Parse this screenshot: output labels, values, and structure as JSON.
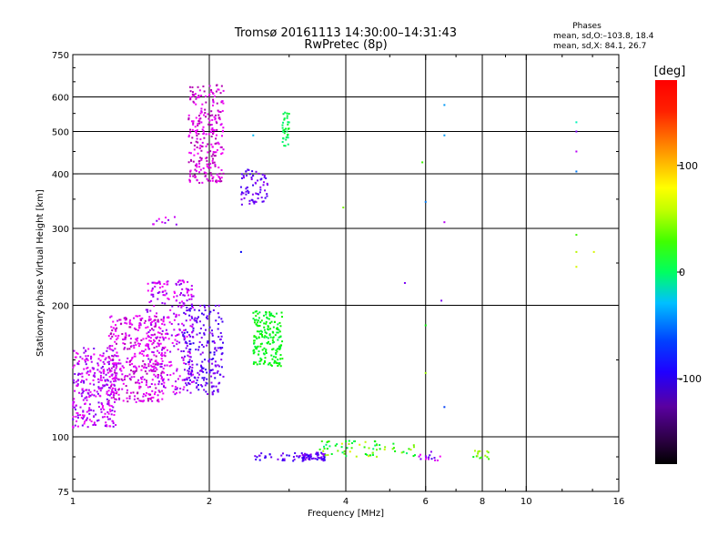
{
  "chart_data": {
    "type": "scatter",
    "title": "Tromsø 20161113 14:30:00–14:31:43",
    "subtitle": "RwPretec (8p)",
    "xlabel": "Frequency [MHz]",
    "ylabel": "Stationary phase Virtual Height [km]",
    "x_scale": "log",
    "y_scale": "log",
    "xlim": [
      1,
      16
    ],
    "ylim": [
      75,
      750
    ],
    "x_ticks": [
      1,
      2,
      4,
      6,
      8,
      10,
      16
    ],
    "y_ticks": [
      75,
      100,
      200,
      300,
      400,
      500,
      600,
      750
    ],
    "x_gridlines": [
      2,
      4,
      6,
      8,
      10
    ],
    "y_gridlines": [
      100,
      200,
      300,
      400,
      500,
      600
    ],
    "stats": {
      "title": "Phases",
      "line1": "mean, sd,O:–103.8, 18.4",
      "line2": "mean, sd,X:  84.1, 26.7"
    },
    "colorbar": {
      "label": "[deg]",
      "range": [
        -180,
        180
      ],
      "ticks": [
        100,
        0,
        -100
      ]
    },
    "clusters": [
      {
        "f": [
          1.0,
          1.25
        ],
        "h": [
          105,
          160
        ],
        "n": 300,
        "phase": [
          -150,
          -95
        ]
      },
      {
        "f": [
          1.2,
          1.6
        ],
        "h": [
          120,
          190
        ],
        "n": 400,
        "phase": [
          -160,
          -120
        ]
      },
      {
        "f": [
          1.45,
          1.85
        ],
        "h": [
          125,
          230
        ],
        "n": 250,
        "phase": [
          -150,
          -100
        ]
      },
      {
        "f": [
          1.75,
          2.15
        ],
        "h": [
          125,
          200
        ],
        "n": 220,
        "phase": [
          -110,
          -75
        ]
      },
      {
        "f": [
          1.8,
          2.15
        ],
        "h": [
          380,
          640
        ],
        "n": 260,
        "phase": [
          -165,
          -130
        ]
      },
      {
        "f": [
          2.35,
          2.7
        ],
        "h": [
          340,
          410
        ],
        "n": 70,
        "phase": [
          -110,
          -75
        ]
      },
      {
        "f": [
          2.5,
          2.9
        ],
        "h": [
          145,
          195
        ],
        "n": 180,
        "phase": [
          75,
          110
        ]
      },
      {
        "f": [
          2.9,
          3.0
        ],
        "h": [
          460,
          560
        ],
        "n": 35,
        "phase": [
          60,
          95
        ]
      },
      {
        "f": [
          1.5,
          1.7
        ],
        "h": [
          300,
          320
        ],
        "n": 10,
        "phase": [
          -140,
          -100
        ]
      },
      {
        "f": [
          2.5,
          3.2
        ],
        "h": [
          88,
          92
        ],
        "n": 30,
        "phase": [
          -110,
          -70
        ]
      },
      {
        "f": [
          3.2,
          3.6
        ],
        "h": [
          88,
          92
        ],
        "n": 60,
        "phase": [
          -110,
          -70
        ]
      },
      {
        "f": [
          3.5,
          5.7
        ],
        "h": [
          90,
          98
        ],
        "n": 70,
        "phase": [
          60,
          175
        ]
      },
      {
        "f": [
          5.8,
          6.5
        ],
        "h": [
          88,
          93
        ],
        "n": 15,
        "phase": [
          -150,
          -80
        ]
      },
      {
        "f": [
          7.6,
          8.3
        ],
        "h": [
          88,
          93
        ],
        "n": 15,
        "phase": [
          80,
          165
        ]
      }
    ],
    "points": [
      {
        "f": 5.9,
        "h": 425,
        "phase": 120
      },
      {
        "f": 6.0,
        "h": 345,
        "phase": -20
      },
      {
        "f": 6.0,
        "h": 180,
        "phase": 100
      },
      {
        "f": 6.0,
        "h": 140,
        "phase": 150
      },
      {
        "f": 6.6,
        "h": 575,
        "phase": -10
      },
      {
        "f": 6.6,
        "h": 490,
        "phase": -10
      },
      {
        "f": 6.6,
        "h": 310,
        "phase": -120
      },
      {
        "f": 6.5,
        "h": 205,
        "phase": -100
      },
      {
        "f": 6.6,
        "h": 117,
        "phase": -40
      },
      {
        "f": 5.4,
        "h": 225,
        "phase": -100
      },
      {
        "f": 3.95,
        "h": 335,
        "phase": 140
      },
      {
        "f": 2.5,
        "h": 490,
        "phase": 0
      },
      {
        "f": 2.35,
        "h": 265,
        "phase": -60
      },
      {
        "f": 12.9,
        "h": 525,
        "phase": 40
      },
      {
        "f": 12.9,
        "h": 500,
        "phase": -100
      },
      {
        "f": 12.9,
        "h": 450,
        "phase": -120
      },
      {
        "f": 12.9,
        "h": 405,
        "phase": -20
      },
      {
        "f": 12.9,
        "h": 290,
        "phase": 120
      },
      {
        "f": 12.9,
        "h": 265,
        "phase": 160
      },
      {
        "f": 12.9,
        "h": 245,
        "phase": 170
      },
      {
        "f": 14.1,
        "h": 265,
        "phase": 170
      }
    ]
  }
}
